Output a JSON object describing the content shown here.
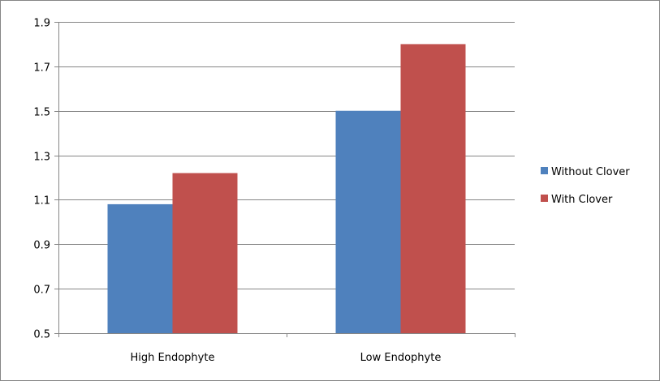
{
  "chart_data": {
    "type": "bar",
    "categories": [
      "High Endophyte",
      "Low Endophyte"
    ],
    "series": [
      {
        "name": "Without Clover",
        "values": [
          1.08,
          1.5
        ],
        "color": "#4F81BD"
      },
      {
        "name": "With Clover",
        "values": [
          1.22,
          1.8
        ],
        "color": "#C0504D"
      }
    ],
    "title": "",
    "xlabel": "",
    "ylabel": "",
    "ylim": [
      0.5,
      1.9
    ],
    "yticks": [
      "0.5",
      "0.7",
      "0.9",
      "1.1",
      "1.3",
      "1.5",
      "1.7",
      "1.9"
    ],
    "grid": true,
    "legend_position": "right"
  }
}
